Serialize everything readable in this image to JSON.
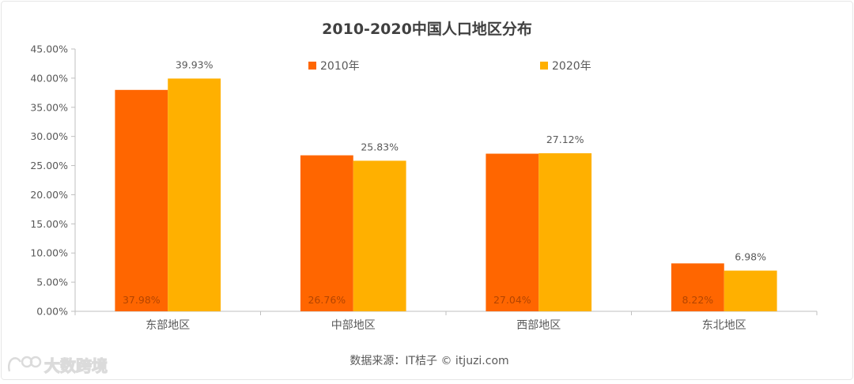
{
  "chart_data": {
    "type": "bar",
    "title": "2010-2020中国人口地区分布",
    "categories": [
      "东部地区",
      "中部地区",
      "西部地区",
      "东北地区"
    ],
    "series": [
      {
        "name": "2010年",
        "color": "#ff6600",
        "values": [
          37.98,
          26.76,
          27.04,
          8.22
        ],
        "labels": [
          "37.98%",
          "26.76%",
          "27.04%",
          "8.22%"
        ]
      },
      {
        "name": "2020年",
        "color": "#ffb000",
        "values": [
          39.93,
          25.83,
          27.12,
          6.98
        ],
        "labels": [
          "39.93%",
          "25.83%",
          "27.12%",
          "6.98%"
        ]
      }
    ],
    "ylim": [
      0,
      45
    ],
    "yticks": [
      0,
      5,
      10,
      15,
      20,
      25,
      30,
      35,
      40,
      45
    ],
    "ytick_labels": [
      "0.00%",
      "5.00%",
      "10.00%",
      "15.00%",
      "20.00%",
      "25.00%",
      "30.00%",
      "35.00%",
      "40.00%",
      "45.00%"
    ],
    "xlabel": "",
    "ylabel": "",
    "legend_position": "top",
    "grid": false
  },
  "source": "数据来源：IT桔子 © itjuzi.com",
  "watermark": "大数跨境",
  "colors": {
    "border": "#e6e6e6",
    "axis": "#bfbfbf",
    "text": "#595959",
    "title": "#404040"
  }
}
